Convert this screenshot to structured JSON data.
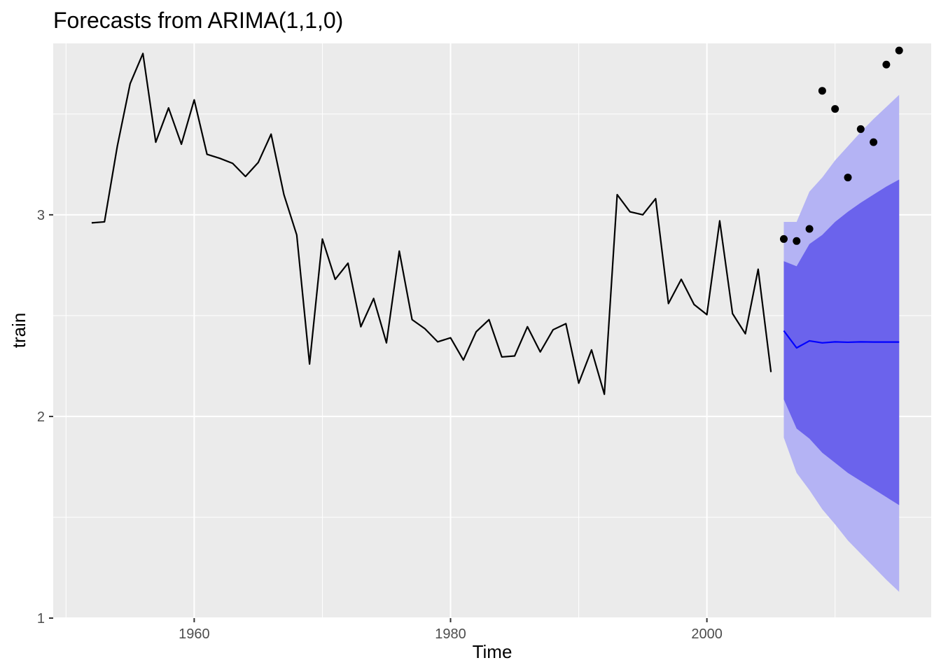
{
  "chart_data": {
    "type": "line",
    "title": "Forecasts from ARIMA(1,1,0)",
    "xlabel": "Time",
    "ylabel": "train",
    "xlim": [
      1949,
      2017.5
    ],
    "ylim": [
      1,
      3.85
    ],
    "x_ticks": [
      1960,
      1980,
      2000
    ],
    "x_tick_labels": [
      "1960",
      "1980",
      "2000"
    ],
    "y_ticks": [
      1,
      2,
      3
    ],
    "y_tick_labels": [
      "1",
      "2",
      "3"
    ],
    "grid": true,
    "series": [
      {
        "role": "history",
        "x": [
          1952,
          1953,
          1954,
          1955,
          1956,
          1957,
          1958,
          1959,
          1960,
          1961,
          1962,
          1963,
          1964,
          1965,
          1966,
          1967,
          1968,
          1969,
          1970,
          1971,
          1972,
          1973,
          1974,
          1975,
          1976,
          1977,
          1978,
          1979,
          1980,
          1981,
          1982,
          1983,
          1984,
          1985,
          1986,
          1987,
          1988,
          1989,
          1990,
          1991,
          1992,
          1993,
          1994,
          1995,
          1996,
          1997,
          1998,
          1999,
          2000,
          2001,
          2002,
          2003,
          2004,
          2005
        ],
        "values": [
          2.96,
          2.965,
          3.34,
          3.65,
          3.8,
          3.36,
          3.53,
          3.35,
          3.57,
          3.3,
          3.28,
          3.255,
          3.19,
          3.26,
          3.4,
          3.1,
          2.9,
          2.26,
          2.88,
          2.68,
          2.76,
          2.445,
          2.585,
          2.365,
          2.82,
          2.48,
          2.435,
          2.37,
          2.39,
          2.28,
          2.42,
          2.48,
          2.295,
          2.3,
          2.445,
          2.32,
          2.43,
          2.46,
          2.165,
          2.33,
          2.11,
          3.1,
          3.015,
          3.0,
          3.08,
          2.56,
          2.68,
          2.555,
          2.505,
          2.97,
          2.51,
          2.41,
          2.73,
          2.22
        ]
      },
      {
        "role": "forecast",
        "x": [
          2006,
          2007,
          2008,
          2009,
          2010,
          2011,
          2012,
          2013,
          2014,
          2015
        ],
        "values": [
          2.425,
          2.34,
          2.375,
          2.365,
          2.37,
          2.368,
          2.37,
          2.369,
          2.369,
          2.369
        ]
      }
    ],
    "intervals": {
      "x": [
        2006,
        2007,
        2008,
        2009,
        2010,
        2011,
        2012,
        2013,
        2014,
        2015
      ],
      "lo80": [
        2.085,
        1.94,
        1.89,
        1.82,
        1.77,
        1.72,
        1.68,
        1.64,
        1.6,
        1.56
      ],
      "hi80": [
        2.77,
        2.745,
        2.855,
        2.9,
        2.965,
        3.015,
        3.06,
        3.1,
        3.14,
        3.175
      ],
      "lo95": [
        1.895,
        1.72,
        1.635,
        1.54,
        1.465,
        1.385,
        1.32,
        1.255,
        1.19,
        1.13
      ],
      "hi95": [
        2.965,
        2.965,
        3.115,
        3.185,
        3.27,
        3.34,
        3.41,
        3.475,
        3.535,
        3.595
      ]
    },
    "test_points": {
      "x": [
        2006,
        2007,
        2008,
        2009,
        2010,
        2011,
        2012,
        2013,
        2014,
        2015
      ],
      "values": [
        2.88,
        2.87,
        2.93,
        3.615,
        3.525,
        3.185,
        3.425,
        3.36,
        3.745,
        3.815
      ]
    },
    "colors": {
      "panel": "#ebebeb",
      "grid_major": "#ffffff",
      "history": "#000000",
      "forecast": "#0000ff",
      "band80": "#6b63ec",
      "band95": "#b4b3f4",
      "points": "#000000",
      "axis_tick": "#333333"
    }
  }
}
